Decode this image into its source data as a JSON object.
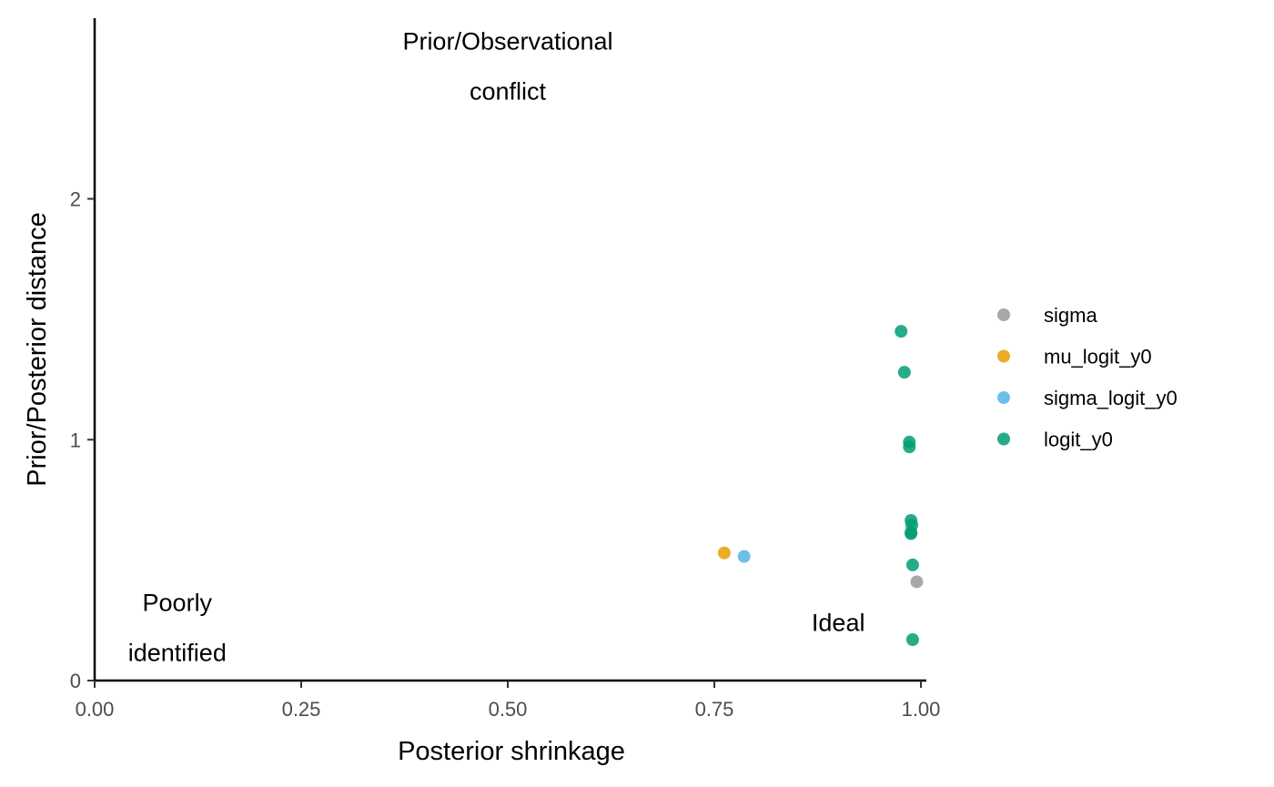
{
  "chart_data": {
    "type": "scatter",
    "title": "",
    "xlabel": "Posterior shrinkage",
    "ylabel": "Prior/Posterior distance",
    "xlim": [
      0,
      1.0
    ],
    "ylim": [
      0,
      2.75
    ],
    "xticks": [
      0,
      0.25,
      0.5,
      0.75,
      1.0
    ],
    "xtick_labels": [
      "0.00",
      "0.25",
      "0.50",
      "0.75",
      "1.00"
    ],
    "yticks": [
      0,
      1,
      2
    ],
    "ytick_labels": [
      "0",
      "1",
      "2"
    ],
    "grid": false,
    "legend_position": "right",
    "annotations": [
      {
        "lines": [
          "Prior/Observational",
          "conflict"
        ],
        "x": 0.5,
        "y": 2.55
      },
      {
        "lines": [
          "Poorly",
          "identified"
        ],
        "x": 0.1,
        "y": 0.22
      },
      {
        "lines": [
          "Ideal"
        ],
        "x": 0.9,
        "y": 0.24
      }
    ],
    "series": [
      {
        "name": "sigma",
        "color": "#999999",
        "points": [
          [
            0.995,
            0.41
          ]
        ]
      },
      {
        "name": "mu_logit_y0",
        "color": "#E69F00",
        "points": [
          [
            0.762,
            0.53
          ]
        ]
      },
      {
        "name": "sigma_logit_y0",
        "color": "#56B4E9",
        "points": [
          [
            0.786,
            0.515
          ]
        ]
      },
      {
        "name": "logit_y0",
        "color": "#009E73",
        "points": [
          [
            0.976,
            1.45
          ],
          [
            0.98,
            1.28
          ],
          [
            0.986,
            0.99
          ],
          [
            0.986,
            0.97
          ],
          [
            0.988,
            0.665
          ],
          [
            0.989,
            0.645
          ],
          [
            0.988,
            0.615
          ],
          [
            0.988,
            0.61
          ],
          [
            0.99,
            0.48
          ],
          [
            0.99,
            0.17
          ]
        ]
      }
    ]
  }
}
